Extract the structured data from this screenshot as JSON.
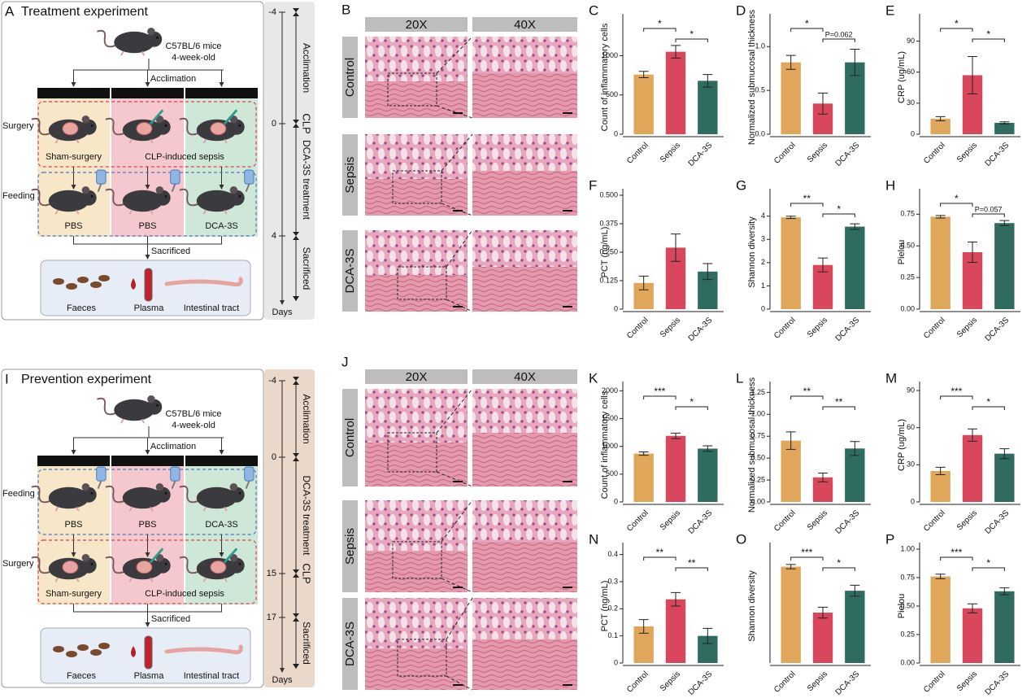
{
  "panels": {
    "treatment": {
      "letter": "A",
      "title": "Treatment experiment",
      "mouse": [
        "C57BL/6 mice",
        "4-week-old"
      ],
      "acclimation": "Acclimation",
      "groups": [
        "Control",
        "Sepsis",
        "DCA-3S"
      ],
      "steps": [
        {
          "label": "Surgery",
          "color": "#d9434e",
          "items": [
            "Sham-surgery",
            "CLP-induced sepsis"
          ]
        },
        {
          "label": "Feeding",
          "color": "#4a78c2",
          "items": [
            "PBS",
            "PBS",
            "DCA-3S"
          ]
        }
      ],
      "sacrificed": "Sacrificed",
      "samples": [
        "Faeces",
        "Plasma",
        "Intestinal tract"
      ],
      "timeline": {
        "ticks": [
          -4,
          0,
          4
        ],
        "axis": "Days",
        "phases": [
          {
            "label": "Acclimation",
            "from": -4,
            "to": 0,
            "color": "#222222"
          },
          {
            "label": "CLP",
            "from": 0,
            "to": 0,
            "color": "#d0343f"
          },
          {
            "label": "DCA-3S treatment",
            "from": 0,
            "to": 4,
            "color": "#4a6fb5"
          },
          {
            "label": "Sacrificed",
            "from": 4,
            "color": "#222222"
          }
        ]
      }
    },
    "prevention": {
      "letter": "I",
      "title": "Prevention experiment",
      "mouse": [
        "C57BL/6 mice",
        "4-week-old"
      ],
      "acclimation": "Acclimation",
      "groups": [
        "Control",
        "Sepsis",
        "DCA-3S"
      ],
      "steps": [
        {
          "label": "Feeding",
          "color": "#4a78c2",
          "items": [
            "PBS",
            "PBS",
            "DCA-3S"
          ]
        },
        {
          "label": "Surgery",
          "color": "#d9434e",
          "items": [
            "Sham-surgery",
            "CLP-induced sepsis"
          ]
        }
      ],
      "sacrificed": "Sacrificed",
      "samples": [
        "Faeces",
        "Plasma",
        "Intestinal tract"
      ],
      "timeline": {
        "ticks": [
          -4,
          0,
          15,
          17
        ],
        "axis": "Days",
        "phases": [
          {
            "label": "Acclimation",
            "from": -4,
            "to": 0,
            "color": "#222222"
          },
          {
            "label": "DCA-3S treatment",
            "from": 0,
            "to": 15,
            "color": "#4a6fb5"
          },
          {
            "label": "CLP",
            "from": 15,
            "to": 15,
            "color": "#d0343f"
          },
          {
            "label": "Sacrificed",
            "from": 17,
            "color": "#222222"
          }
        ]
      }
    }
  },
  "histology": [
    {
      "letter": "B",
      "columns": [
        "20X",
        "40X"
      ],
      "rows": [
        "Control",
        "Sepsis",
        "DCA-3S"
      ]
    },
    {
      "letter": "J",
      "columns": [
        "20X",
        "40X"
      ],
      "rows": [
        "Control",
        "Sepsis",
        "DCA-3S"
      ]
    }
  ],
  "chart_data": [
    {
      "type": "bar",
      "label": "C",
      "ylabel": "Count of inflammatory cells",
      "categories": [
        "Control",
        "Sepsis",
        "DCA-3S"
      ],
      "colors": [
        "#e0a75a",
        "#d8475b",
        "#2f6c5f"
      ],
      "values": [
        760,
        1050,
        680
      ],
      "errors": [
        40,
        80,
        80
      ],
      "ylim": [
        0,
        1450
      ],
      "yticks": [
        0,
        500,
        1000
      ],
      "significance": [
        {
          "between": [
            "Control",
            "Sepsis"
          ],
          "label": "*"
        },
        {
          "between": [
            "Sepsis",
            "DCA-3S"
          ],
          "label": "*"
        }
      ]
    },
    {
      "type": "bar",
      "label": "D",
      "ylabel": "Normalized submucosal thickness",
      "categories": [
        "Control",
        "Sepsis",
        "DCA-3S"
      ],
      "colors": [
        "#e0a75a",
        "#d8475b",
        "#2f6c5f"
      ],
      "values": [
        0.82,
        0.35,
        0.82
      ],
      "errors": [
        0.08,
        0.12,
        0.15
      ],
      "ylim": [
        0,
        1.3
      ],
      "yticks": [
        {
          "value": 0,
          "label": "0.0"
        },
        0.5,
        {
          "value": 1,
          "label": "1.0"
        }
      ],
      "significance": [
        {
          "between": [
            "Control",
            "Sepsis"
          ],
          "label": "*"
        },
        {
          "between": [
            "Sepsis",
            "DCA-3S"
          ],
          "label": "P=0.062"
        }
      ]
    },
    {
      "type": "bar",
      "label": "E",
      "ylabel": "CRP (ug/mL)",
      "categories": [
        "Control",
        "Sepsis",
        "DCA-3S"
      ],
      "colors": [
        "#e0a75a",
        "#d8475b",
        "#2f6c5f"
      ],
      "values": [
        15,
        57,
        11
      ],
      "errors": [
        2,
        18,
        1
      ],
      "ylim": [
        0,
        110
      ],
      "yticks": [
        0,
        30,
        60,
        90
      ],
      "significance": [
        {
          "between": [
            "Control",
            "Sepsis"
          ],
          "label": "*"
        },
        {
          "between": [
            "Sepsis",
            "DCA-3S"
          ],
          "label": "*"
        }
      ]
    },
    {
      "type": "bar",
      "label": "F",
      "ylabel": "PCT (ng/mL)",
      "categories": [
        "Control",
        "Sepsis",
        "DCA-3S"
      ],
      "colors": [
        "#e0a75a",
        "#d8475b",
        "#2f6c5f"
      ],
      "values": [
        0.115,
        0.27,
        0.165
      ],
      "errors": [
        0.03,
        0.06,
        0.035
      ],
      "ylim": [
        0,
        0.5
      ],
      "yticks": [
        0,
        0.125,
        {
          "value": 0.25,
          "label": "0.250"
        },
        0.375,
        {
          "value": 0.5,
          "label": "0.500"
        }
      ],
      "significance": []
    },
    {
      "type": "bar",
      "label": "G",
      "ylabel": "Shannon diversity",
      "categories": [
        "Control",
        "Sepsis",
        "DCA-3S"
      ],
      "colors": [
        "#e0a75a",
        "#d8475b",
        "#2f6c5f"
      ],
      "values": [
        3.95,
        1.9,
        3.55
      ],
      "errors": [
        0.05,
        0.3,
        0.12
      ],
      "ylim": [
        0,
        4.9
      ],
      "yticks": [
        0,
        1,
        2,
        3,
        4
      ],
      "significance": [
        {
          "between": [
            "Control",
            "Sepsis"
          ],
          "label": "**"
        },
        {
          "between": [
            "Sepsis",
            "DCA-3S"
          ],
          "label": "*"
        }
      ]
    },
    {
      "type": "bar",
      "label": "H",
      "ylabel": "Pielou",
      "categories": [
        "Control",
        "Sepsis",
        "DCA-3S"
      ],
      "colors": [
        "#e0a75a",
        "#d8475b",
        "#2f6c5f"
      ],
      "values": [
        0.73,
        0.45,
        0.68
      ],
      "errors": [
        0.01,
        0.08,
        0.02
      ],
      "ylim": [
        0,
        0.9
      ],
      "yticks": [
        {
          "value": 0,
          "label": "0.00"
        },
        0.25,
        {
          "value": 0.5,
          "label": "0.50"
        },
        0.75
      ],
      "significance": [
        {
          "between": [
            "Control",
            "Sepsis"
          ],
          "label": "*"
        },
        {
          "between": [
            "Sepsis",
            "DCA-3S"
          ],
          "label": "P=0.057"
        }
      ]
    },
    {
      "type": "bar",
      "label": "K",
      "ylabel": "Count of inflammatory cells",
      "categories": [
        "Control",
        "Sepsis",
        "DCA-3S"
      ],
      "colors": [
        "#e0a75a",
        "#d8475b",
        "#2f6c5f"
      ],
      "values": [
        870,
        1190,
        960
      ],
      "errors": [
        30,
        50,
        50
      ],
      "ylim": [
        0,
        2050
      ],
      "yticks": [
        0,
        500,
        1000,
        1500,
        2000
      ],
      "significance": [
        {
          "between": [
            "Control",
            "Sepsis"
          ],
          "label": "***"
        },
        {
          "between": [
            "Sepsis",
            "DCA-3S"
          ],
          "label": "*"
        }
      ]
    },
    {
      "type": "bar",
      "label": "L",
      "ylabel": "Normalized submucosal thickness",
      "categories": [
        "Control",
        "Sepsis",
        "DCA-3S"
      ],
      "colors": [
        "#e0a75a",
        "#d8475b",
        "#2f6c5f"
      ],
      "values": [
        0.7,
        0.28,
        0.61
      ],
      "errors": [
        0.1,
        0.05,
        0.08
      ],
      "ylim": [
        0,
        1.3
      ],
      "yticks": [
        {
          "value": 0,
          "label": "0.00"
        },
        0.25,
        {
          "value": 0.5,
          "label": "0.50"
        },
        0.75,
        {
          "value": 1,
          "label": "1.00"
        },
        1.25
      ],
      "significance": [
        {
          "between": [
            "Control",
            "Sepsis"
          ],
          "label": "**"
        },
        {
          "between": [
            "Sepsis",
            "DCA-3S"
          ],
          "label": "**"
        }
      ]
    },
    {
      "type": "bar",
      "label": "M",
      "ylabel": "CRP (ug/mL)",
      "categories": [
        "Control",
        "Sepsis",
        "DCA-3S"
      ],
      "colors": [
        "#e0a75a",
        "#d8475b",
        "#2f6c5f"
      ],
      "values": [
        25,
        54,
        39
      ],
      "errors": [
        3,
        5,
        4
      ],
      "ylim": [
        0,
        92
      ],
      "yticks": [
        0,
        30,
        60,
        90
      ],
      "significance": [
        {
          "between": [
            "Control",
            "Sepsis"
          ],
          "label": "***"
        },
        {
          "between": [
            "Sepsis",
            "DCA-3S"
          ],
          "label": "*"
        }
      ]
    },
    {
      "type": "bar",
      "label": "N",
      "ylabel": "PCT (ng/mL)",
      "categories": [
        "Control",
        "Sepsis",
        "DCA-3S"
      ],
      "colors": [
        "#e0a75a",
        "#d8475b",
        "#2f6c5f"
      ],
      "values": [
        0.135,
        0.235,
        0.1
      ],
      "errors": [
        0.025,
        0.025,
        0.028
      ],
      "ylim": [
        0,
        0.42
      ],
      "yticks": [
        0,
        0.1,
        0.2,
        0.3,
        0.4
      ],
      "significance": [
        {
          "between": [
            "Control",
            "Sepsis"
          ],
          "label": "**"
        },
        {
          "between": [
            "Sepsis",
            "DCA-3S"
          ],
          "label": "**"
        }
      ]
    },
    {
      "type": "bar",
      "label": "O",
      "ylabel": "Shannon diversity",
      "categories": [
        "Control",
        "Sepsis",
        "DCA-3S"
      ],
      "colors": [
        "#e0a75a",
        "#d8475b",
        "#2f6c5f"
      ],
      "values": [
        4.4,
        2.3,
        3.3
      ],
      "errors": [
        0.1,
        0.25,
        0.25
      ],
      "ylim": [
        0,
        5.2
      ],
      "significance": [
        {
          "between": [
            "Control",
            "Sepsis"
          ],
          "label": "***"
        },
        {
          "between": [
            "Sepsis",
            "DCA-3S"
          ],
          "label": "*"
        }
      ]
    },
    {
      "type": "bar",
      "label": "P",
      "ylabel": "Pielou",
      "categories": [
        "Control",
        "Sepsis",
        "DCA-3S"
      ],
      "colors": [
        "#e0a75a",
        "#d8475b",
        "#2f6c5f"
      ],
      "values": [
        0.76,
        0.48,
        0.63
      ],
      "errors": [
        0.02,
        0.04,
        0.03
      ],
      "ylim": [
        0,
        1.0
      ],
      "yticks": [
        {
          "value": 0,
          "label": "0.00"
        },
        0.25,
        {
          "value": 0.5,
          "label": "0.50"
        },
        0.75,
        {
          "value": 1,
          "label": "1.00"
        }
      ],
      "significance": [
        {
          "between": [
            "Control",
            "Sepsis"
          ],
          "label": "***"
        },
        {
          "between": [
            "Sepsis",
            "DCA-3S"
          ],
          "label": "*"
        }
      ]
    }
  ]
}
